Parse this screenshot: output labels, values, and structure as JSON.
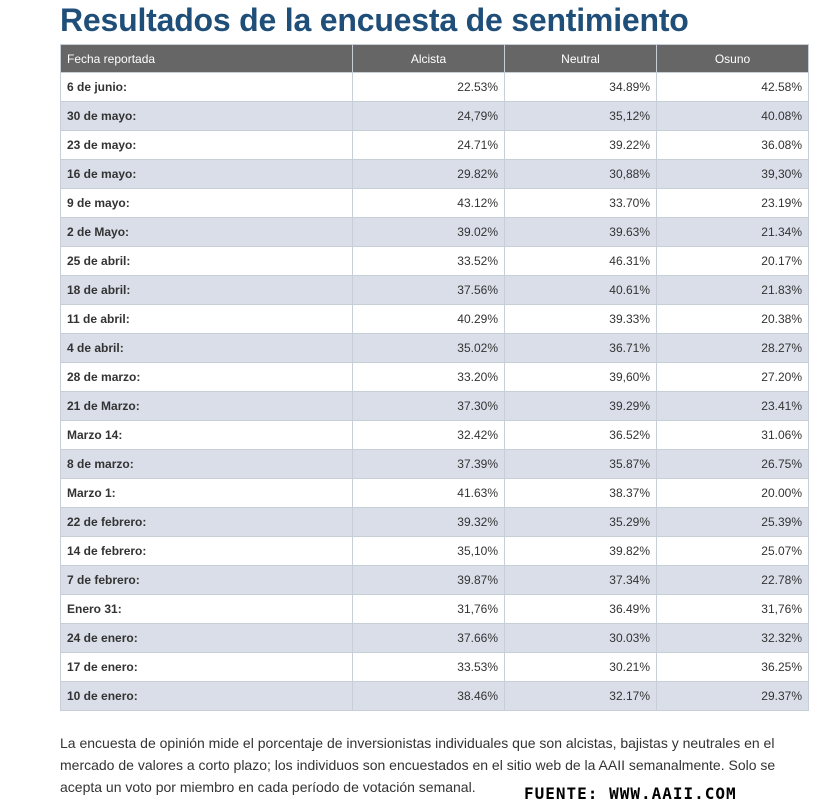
{
  "title": "Resultados de la encuesta de sentimiento",
  "table": {
    "headers": [
      "Fecha reportada",
      "Alcista",
      "Neutral",
      "Osuno"
    ],
    "rows": [
      [
        "6 de junio:",
        "22.53%",
        "34.89%",
        "42.58%"
      ],
      [
        "30 de mayo:",
        "24,79%",
        "35,12%",
        "40.08%"
      ],
      [
        "23 de mayo:",
        "24.71%",
        "39.22%",
        "36.08%"
      ],
      [
        "16 de mayo:",
        "29.82%",
        "30,88%",
        "39,30%"
      ],
      [
        "9 de mayo:",
        "43.12%",
        "33.70%",
        "23.19%"
      ],
      [
        "2 de Mayo:",
        "39.02%",
        "39.63%",
        "21.34%"
      ],
      [
        "25 de abril:",
        "33.52%",
        "46.31%",
        "20.17%"
      ],
      [
        "18 de abril:",
        "37.56%",
        "40.61%",
        "21.83%"
      ],
      [
        "11 de abril:",
        "40.29%",
        "39.33%",
        "20.38%"
      ],
      [
        "4 de abril:",
        "35.02%",
        "36.71%",
        "28.27%"
      ],
      [
        "28 de marzo:",
        "33.20%",
        "39,60%",
        "27.20%"
      ],
      [
        "21 de Marzo:",
        "37.30%",
        "39.29%",
        "23.41%"
      ],
      [
        "Marzo 14:",
        "32.42%",
        "36.52%",
        "31.06%"
      ],
      [
        "8 de marzo:",
        "37.39%",
        "35.87%",
        "26.75%"
      ],
      [
        "Marzo 1:",
        "41.63%",
        "38.37%",
        "20.00%"
      ],
      [
        "22 de febrero:",
        "39.32%",
        "35.29%",
        "25.39%"
      ],
      [
        "14 de febrero:",
        "35,10%",
        "39.82%",
        "25.07%"
      ],
      [
        "7 de febrero:",
        "39.87%",
        "37.34%",
        "22.78%"
      ],
      [
        "Enero 31:",
        "31,76%",
        "36.49%",
        "31,76%"
      ],
      [
        "24 de enero:",
        "37.66%",
        "30.03%",
        "32.32%"
      ],
      [
        "17 de enero:",
        "33.53%",
        "30.21%",
        "36.25%"
      ],
      [
        "10 de enero:",
        "38.46%",
        "32.17%",
        "29.37%"
      ]
    ]
  },
  "description": "La encuesta de opinión mide el porcentaje de inversionistas individuales que son alcistas, bajistas y neutrales en el mercado de valores a corto plazo; los individuos son encuestados en el sitio web de la AAII semanalmente. Solo se acepta un voto por miembro en cada período de votación semanal.",
  "source": "FUENTE: WWW.AAII.COM"
}
